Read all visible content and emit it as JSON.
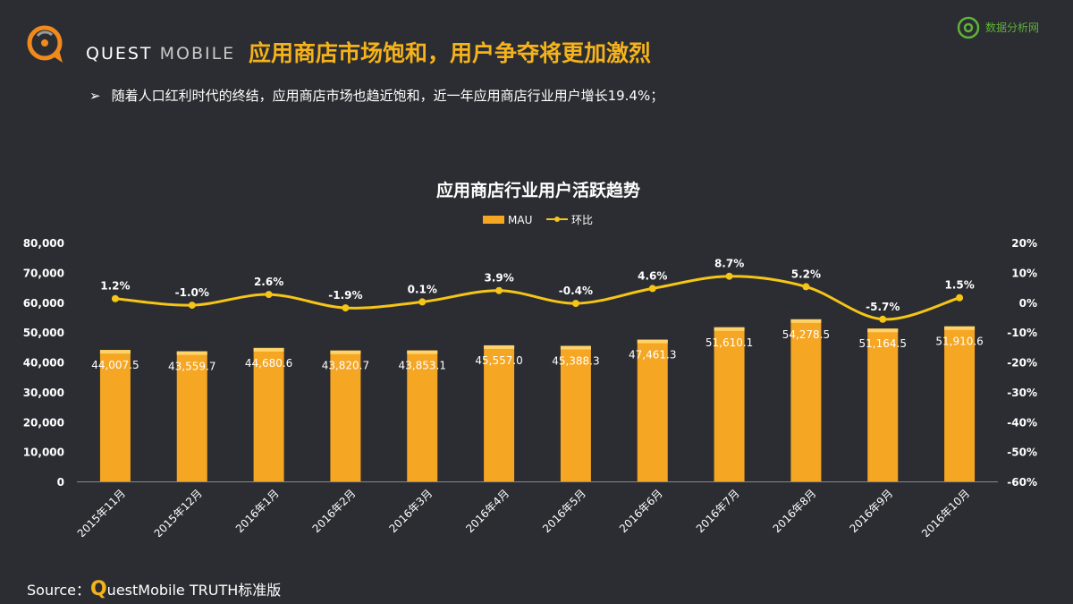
{
  "brand": {
    "name_bold": "QUEST",
    "name_light": "MOBILE"
  },
  "headline": "应用商店市场饱和，用户争夺将更加激烈",
  "watermark": {
    "text": "数据分析网"
  },
  "bullet": {
    "arrow": "➢",
    "text": "随着人口红利时代的终结，应用商店市场也趋近饱和，近一年应用商店行业用户增长19.4%；"
  },
  "source": {
    "label": "Source：",
    "q": "Q",
    "rest": "uestMobile TRUTH标准版"
  },
  "colors": {
    "bar": "#f5a623",
    "line": "#f5c518",
    "accent": "#f5b21b",
    "background": "#2b2d32"
  },
  "chart_data": {
    "type": "bar",
    "title": "应用商店行业用户活跃趋势",
    "categories": [
      "2015年11月",
      "2015年12月",
      "2016年1月",
      "2016年2月",
      "2016年3月",
      "2016年4月",
      "2016年5月",
      "2016年6月",
      "2016年7月",
      "2016年8月",
      "2016年9月",
      "2016年10月"
    ],
    "series": [
      {
        "name": "MAU",
        "type": "bar",
        "values": [
          44007.5,
          43559.7,
          44680.6,
          43820.7,
          43853.1,
          45557.0,
          45388.3,
          47461.3,
          51610.1,
          54278.5,
          51164.5,
          51910.6
        ],
        "labels": [
          "44,007.5",
          "43,559.7",
          "44,680.6",
          "43,820.7",
          "43,853.1",
          "45,557.0",
          "45,388.3",
          "47,461.3",
          "51,610.1",
          "54,278.5",
          "51,164.5",
          "51,910.6"
        ]
      },
      {
        "name": "环比",
        "type": "line",
        "values": [
          1.2,
          -1.0,
          2.6,
          -1.9,
          0.1,
          3.9,
          -0.4,
          4.6,
          8.7,
          5.2,
          -5.7,
          1.5
        ],
        "labels": [
          "1.2%",
          "-1.0%",
          "2.6%",
          "-1.9%",
          "0.1%",
          "3.9%",
          "-0.4%",
          "4.6%",
          "8.7%",
          "5.2%",
          "-5.7%",
          "1.5%"
        ]
      }
    ],
    "ylim": [
      0,
      80000
    ],
    "y_ticks": [
      "0",
      "10,000",
      "20,000",
      "30,000",
      "40,000",
      "50,000",
      "60,000",
      "70,000",
      "80,000"
    ],
    "y2lim": [
      -60,
      20
    ],
    "y2_ticks": [
      "-60%",
      "-50%",
      "-40%",
      "-30%",
      "-20%",
      "-10%",
      "0%",
      "10%",
      "20%"
    ],
    "legend_position": "top-center",
    "grid": false
  }
}
